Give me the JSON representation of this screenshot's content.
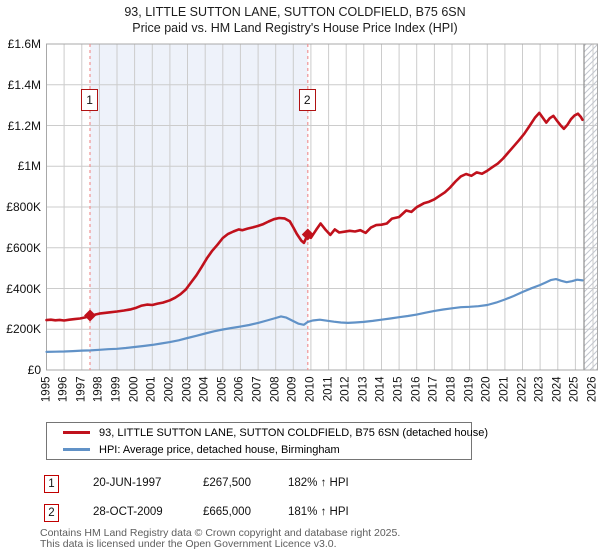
{
  "title": {
    "line1": "93, LITTLE SUTTON LANE, SUTTON COLDFIELD, B75 6SN",
    "line2": "Price paid vs. HM Land Registry's House Price Index (HPI)"
  },
  "colors": {
    "price_line": "#c0111c",
    "hpi_line": "#6192c7",
    "shade": "#eef2fa",
    "grid": "#cccccc",
    "frame": "#a8a8a8",
    "sale_dashed_line": "#f19494",
    "hatch": "#c3c7cf",
    "marker_border": "#b01212",
    "footer_text": "#5e5e5e"
  },
  "y_axis": {
    "ticks": [
      {
        "label": "£0",
        "value": 0
      },
      {
        "label": "£200K",
        "value": 200
      },
      {
        "label": "£400K",
        "value": 400
      },
      {
        "label": "£600K",
        "value": 600
      },
      {
        "label": "£800K",
        "value": 800
      },
      {
        "label": "£1M",
        "value": 1000
      },
      {
        "label": "£1.2M",
        "value": 1200
      },
      {
        "label": "£1.4M",
        "value": 1400
      },
      {
        "label": "£1.6M",
        "value": 1600
      }
    ]
  },
  "x_axis": {
    "years": [
      1995,
      1996,
      1997,
      1998,
      1999,
      2000,
      2001,
      2002,
      2003,
      2004,
      2005,
      2006,
      2007,
      2008,
      2009,
      2010,
      2011,
      2012,
      2013,
      2014,
      2015,
      2016,
      2017,
      2018,
      2019,
      2020,
      2021,
      2022,
      2023,
      2024,
      2025,
      2026
    ]
  },
  "legend": [
    {
      "label": "93, LITTLE SUTTON LANE, SUTTON COLDFIELD, B75 6SN (detached house)",
      "color": "#c0111c"
    },
    {
      "label": "HPI: Average price, detached house, Birmingham",
      "color": "#6192c7"
    }
  ],
  "sales": [
    {
      "num": "1",
      "date": "20-JUN-1997",
      "price": "£267,500",
      "hpi": "182% ↑ HPI"
    },
    {
      "num": "2",
      "date": "28-OCT-2009",
      "price": "£665,000",
      "hpi": "181% ↑ HPI"
    }
  ],
  "footer": {
    "line1": "Contains HM Land Registry data © Crown copyright and database right 2025.",
    "line2": "This data is licensed under the Open Government Licence v3.0."
  },
  "chart_data": {
    "type": "line",
    "title": "93, LITTLE SUTTON LANE, SUTTON COLDFIELD, B75 6SN — Price paid vs. HM Land Registry's House Price Index (HPI)",
    "units": "GBP thousands",
    "xlim": [
      1995,
      2026
    ],
    "ylim": [
      0,
      1600
    ],
    "grid": true,
    "legend_position": "bottom",
    "shaded_region": [
      1997.47,
      2009.82
    ],
    "future_hatch_start": 2025.49,
    "annotations": [
      {
        "num": "1",
        "x": 1997.47,
        "y": 267.5,
        "date": "20-JUN-1997",
        "price_gbp": 267500,
        "pct_vs_hpi": "182% ↑ HPI"
      },
      {
        "num": "2",
        "x": 2009.82,
        "y": 665,
        "date": "28-OCT-2009",
        "price_gbp": 665000,
        "pct_vs_hpi": "181% ↑ HPI"
      }
    ],
    "series": [
      {
        "name": "93, LITTLE SUTTON LANE, SUTTON COLDFIELD, B75 6SN (detached house)",
        "color": "#c0111c",
        "width": 2.6,
        "data_name": "price-paid-line",
        "points": [
          [
            1995.0,
            245
          ],
          [
            1995.25,
            247
          ],
          [
            1995.5,
            244
          ],
          [
            1995.75,
            246
          ],
          [
            1996.0,
            243
          ],
          [
            1996.3,
            247
          ],
          [
            1996.6,
            250
          ],
          [
            1996.9,
            253
          ],
          [
            1997.2,
            258
          ],
          [
            1997.47,
            267.5
          ],
          [
            1997.75,
            272
          ],
          [
            1998.0,
            277
          ],
          [
            1998.3,
            280
          ],
          [
            1998.6,
            283
          ],
          [
            1999.0,
            287
          ],
          [
            1999.4,
            292
          ],
          [
            1999.8,
            298
          ],
          [
            2000.1,
            306
          ],
          [
            2000.4,
            316
          ],
          [
            2000.7,
            321
          ],
          [
            2001.0,
            319
          ],
          [
            2001.3,
            326
          ],
          [
            2001.6,
            331
          ],
          [
            2002.0,
            342
          ],
          [
            2002.3,
            355
          ],
          [
            2002.6,
            372
          ],
          [
            2002.9,
            395
          ],
          [
            2003.2,
            430
          ],
          [
            2003.5,
            465
          ],
          [
            2003.8,
            505
          ],
          [
            2004.1,
            548
          ],
          [
            2004.4,
            585
          ],
          [
            2004.7,
            615
          ],
          [
            2005.0,
            648
          ],
          [
            2005.3,
            668
          ],
          [
            2005.6,
            680
          ],
          [
            2005.9,
            690
          ],
          [
            2006.1,
            686
          ],
          [
            2006.4,
            694
          ],
          [
            2006.7,
            700
          ],
          [
            2007.0,
            707
          ],
          [
            2007.3,
            716
          ],
          [
            2007.6,
            729
          ],
          [
            2007.9,
            740
          ],
          [
            2008.2,
            746
          ],
          [
            2008.5,
            744
          ],
          [
            2008.8,
            730
          ],
          [
            2009.0,
            700
          ],
          [
            2009.2,
            668
          ],
          [
            2009.45,
            635
          ],
          [
            2009.6,
            624
          ],
          [
            2009.82,
            665
          ],
          [
            2010.0,
            649
          ],
          [
            2010.3,
            688
          ],
          [
            2010.55,
            719
          ],
          [
            2010.8,
            691
          ],
          [
            2011.1,
            663
          ],
          [
            2011.35,
            690
          ],
          [
            2011.6,
            675
          ],
          [
            2011.9,
            679
          ],
          [
            2012.2,
            683
          ],
          [
            2012.5,
            680
          ],
          [
            2012.8,
            686
          ],
          [
            2013.1,
            673
          ],
          [
            2013.4,
            699
          ],
          [
            2013.7,
            711
          ],
          [
            2014.0,
            713
          ],
          [
            2014.3,
            719
          ],
          [
            2014.6,
            743
          ],
          [
            2015.0,
            751
          ],
          [
            2015.4,
            783
          ],
          [
            2015.7,
            776
          ],
          [
            2016.0,
            799
          ],
          [
            2016.4,
            818
          ],
          [
            2016.7,
            826
          ],
          [
            2017.0,
            838
          ],
          [
            2017.3,
            855
          ],
          [
            2017.6,
            872
          ],
          [
            2017.9,
            896
          ],
          [
            2018.2,
            925
          ],
          [
            2018.5,
            950
          ],
          [
            2018.8,
            962
          ],
          [
            2019.1,
            953
          ],
          [
            2019.4,
            970
          ],
          [
            2019.7,
            963
          ],
          [
            2020.0,
            978
          ],
          [
            2020.3,
            996
          ],
          [
            2020.6,
            1013
          ],
          [
            2020.9,
            1038
          ],
          [
            2021.2,
            1068
          ],
          [
            2021.5,
            1098
          ],
          [
            2021.8,
            1128
          ],
          [
            2022.1,
            1160
          ],
          [
            2022.4,
            1198
          ],
          [
            2022.7,
            1238
          ],
          [
            2022.95,
            1262
          ],
          [
            2023.15,
            1238
          ],
          [
            2023.35,
            1214
          ],
          [
            2023.55,
            1236
          ],
          [
            2023.75,
            1247
          ],
          [
            2023.95,
            1224
          ],
          [
            2024.15,
            1202
          ],
          [
            2024.35,
            1184
          ],
          [
            2024.55,
            1204
          ],
          [
            2024.75,
            1231
          ],
          [
            2024.95,
            1249
          ],
          [
            2025.15,
            1258
          ],
          [
            2025.3,
            1243
          ],
          [
            2025.4,
            1228
          ]
        ]
      },
      {
        "name": "HPI: Average price, detached house, Birmingham",
        "color": "#6192c7",
        "width": 2.2,
        "data_name": "hpi-line",
        "points": [
          [
            1995.0,
            89
          ],
          [
            1995.5,
            90
          ],
          [
            1996.0,
            91
          ],
          [
            1996.5,
            93
          ],
          [
            1997.0,
            95
          ],
          [
            1997.5,
            96
          ],
          [
            1998.0,
            99
          ],
          [
            1998.5,
            102
          ],
          [
            1999.0,
            104
          ],
          [
            1999.5,
            108
          ],
          [
            2000.0,
            113
          ],
          [
            2000.5,
            118
          ],
          [
            2001.0,
            123
          ],
          [
            2001.5,
            130
          ],
          [
            2002.0,
            137
          ],
          [
            2002.5,
            146
          ],
          [
            2003.0,
            157
          ],
          [
            2003.5,
            168
          ],
          [
            2004.0,
            179
          ],
          [
            2004.5,
            190
          ],
          [
            2005.0,
            199
          ],
          [
            2005.5,
            206
          ],
          [
            2006.0,
            213
          ],
          [
            2006.5,
            221
          ],
          [
            2007.0,
            231
          ],
          [
            2007.5,
            243
          ],
          [
            2008.0,
            255
          ],
          [
            2008.3,
            263
          ],
          [
            2008.6,
            257
          ],
          [
            2009.0,
            240
          ],
          [
            2009.3,
            227
          ],
          [
            2009.6,
            222
          ],
          [
            2009.82,
            236
          ],
          [
            2010.1,
            243
          ],
          [
            2010.5,
            247
          ],
          [
            2010.9,
            242
          ],
          [
            2011.3,
            237
          ],
          [
            2011.7,
            233
          ],
          [
            2012.1,
            231
          ],
          [
            2012.5,
            233
          ],
          [
            2013.0,
            236
          ],
          [
            2013.5,
            241
          ],
          [
            2014.0,
            247
          ],
          [
            2014.5,
            253
          ],
          [
            2015.0,
            259
          ],
          [
            2015.5,
            265
          ],
          [
            2016.0,
            272
          ],
          [
            2016.5,
            281
          ],
          [
            2017.0,
            290
          ],
          [
            2017.5,
            297
          ],
          [
            2018.0,
            303
          ],
          [
            2018.5,
            308
          ],
          [
            2019.0,
            310
          ],
          [
            2019.5,
            313
          ],
          [
            2020.0,
            319
          ],
          [
            2020.5,
            331
          ],
          [
            2021.0,
            346
          ],
          [
            2021.5,
            363
          ],
          [
            2022.0,
            383
          ],
          [
            2022.5,
            401
          ],
          [
            2023.0,
            417
          ],
          [
            2023.3,
            429
          ],
          [
            2023.6,
            441
          ],
          [
            2023.9,
            446
          ],
          [
            2024.2,
            438
          ],
          [
            2024.5,
            431
          ],
          [
            2024.8,
            436
          ],
          [
            2025.1,
            443
          ],
          [
            2025.4,
            440
          ]
        ]
      }
    ]
  }
}
